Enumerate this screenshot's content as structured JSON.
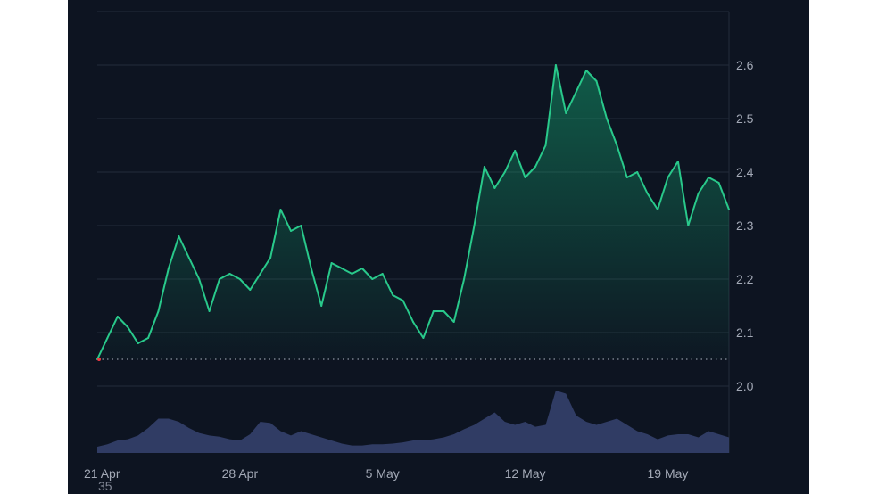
{
  "chart_data": {
    "type": "area",
    "title": "",
    "xlabel": "",
    "ylabel": "",
    "x_ticks": [
      "21 Apr",
      "28 Apr",
      "5 May",
      "12 May",
      "19 May"
    ],
    "y_ticks": [
      "2.0",
      "2.1",
      "2.2",
      "2.3",
      "2.4",
      "2.5",
      "2.6"
    ],
    "y_tick_values": [
      2.0,
      2.1,
      2.2,
      2.3,
      2.4,
      2.5,
      2.6
    ],
    "ylim": [
      1.875,
      2.7
    ],
    "xlim": [
      "2024-04-21",
      "2024-05-22"
    ],
    "grid": true,
    "y_axis_position": "right",
    "reference_line": 2.05,
    "colors": {
      "background": "#0d1421",
      "grid": "#232b3a",
      "line": "#29c98b",
      "area": "#16c784",
      "volume": "#34406b",
      "reference": "#8b93a1",
      "start_marker": "#ea3943"
    },
    "series": [
      {
        "type": "line",
        "points": [
          [
            "2024-04-21",
            2.05
          ],
          [
            "2024-04-21T12",
            2.09
          ],
          [
            "2024-04-22",
            2.13
          ],
          [
            "2024-04-22T12",
            2.11
          ],
          [
            "2024-04-23",
            2.08
          ],
          [
            "2024-04-23T12",
            2.09
          ],
          [
            "2024-04-24",
            2.14
          ],
          [
            "2024-04-24T12",
            2.22
          ],
          [
            "2024-04-25",
            2.28
          ],
          [
            "2024-04-25T12",
            2.24
          ],
          [
            "2024-04-26",
            2.2
          ],
          [
            "2024-04-26T12",
            2.14
          ],
          [
            "2024-04-27",
            2.2
          ],
          [
            "2024-04-27T12",
            2.21
          ],
          [
            "2024-04-28",
            2.2
          ],
          [
            "2024-04-28T12",
            2.18
          ],
          [
            "2024-04-29",
            2.21
          ],
          [
            "2024-04-29T12",
            2.24
          ],
          [
            "2024-04-30",
            2.33
          ],
          [
            "2024-04-30T12",
            2.29
          ],
          [
            "2024-05-01",
            2.3
          ],
          [
            "2024-05-01T12",
            2.22
          ],
          [
            "2024-05-02",
            2.15
          ],
          [
            "2024-05-02T12",
            2.23
          ],
          [
            "2024-05-03",
            2.22
          ],
          [
            "2024-05-03T12",
            2.21
          ],
          [
            "2024-05-04",
            2.22
          ],
          [
            "2024-05-04T12",
            2.2
          ],
          [
            "2024-05-05",
            2.21
          ],
          [
            "2024-05-05T12",
            2.17
          ],
          [
            "2024-05-06",
            2.16
          ],
          [
            "2024-05-06T12",
            2.12
          ],
          [
            "2024-05-07",
            2.09
          ],
          [
            "2024-05-07T12",
            2.14
          ],
          [
            "2024-05-08",
            2.14
          ],
          [
            "2024-05-08T12",
            2.12
          ],
          [
            "2024-05-09",
            2.2
          ],
          [
            "2024-05-09T12",
            2.3
          ],
          [
            "2024-05-10",
            2.41
          ],
          [
            "2024-05-10T12",
            2.37
          ],
          [
            "2024-05-11",
            2.4
          ],
          [
            "2024-05-11T12",
            2.44
          ],
          [
            "2024-05-12",
            2.39
          ],
          [
            "2024-05-12T12",
            2.41
          ],
          [
            "2024-05-13",
            2.45
          ],
          [
            "2024-05-13T12",
            2.6
          ],
          [
            "2024-05-14",
            2.51
          ],
          [
            "2024-05-14T12",
            2.55
          ],
          [
            "2024-05-15",
            2.59
          ],
          [
            "2024-05-15T12",
            2.57
          ],
          [
            "2024-05-16",
            2.5
          ],
          [
            "2024-05-16T12",
            2.45
          ],
          [
            "2024-05-17",
            2.39
          ],
          [
            "2024-05-17T12",
            2.4
          ],
          [
            "2024-05-18",
            2.36
          ],
          [
            "2024-05-18T12",
            2.33
          ],
          [
            "2024-05-19",
            2.39
          ],
          [
            "2024-05-19T12",
            2.42
          ],
          [
            "2024-05-20",
            2.3
          ],
          [
            "2024-05-20T12",
            2.36
          ],
          [
            "2024-05-21",
            2.39
          ],
          [
            "2024-05-21T12",
            2.38
          ],
          [
            "2024-05-22",
            2.33
          ]
        ]
      },
      {
        "type": "volume",
        "points": [
          [
            "2024-04-21",
            0.1
          ],
          [
            "2024-04-21T12",
            0.14
          ],
          [
            "2024-04-22",
            0.2
          ],
          [
            "2024-04-22T12",
            0.22
          ],
          [
            "2024-04-23",
            0.28
          ],
          [
            "2024-04-23T12",
            0.4
          ],
          [
            "2024-04-24",
            0.55
          ],
          [
            "2024-04-24T12",
            0.55
          ],
          [
            "2024-04-25",
            0.5
          ],
          [
            "2024-04-25T12",
            0.4
          ],
          [
            "2024-04-26",
            0.32
          ],
          [
            "2024-04-26T12",
            0.28
          ],
          [
            "2024-04-27",
            0.26
          ],
          [
            "2024-04-27T12",
            0.22
          ],
          [
            "2024-04-28",
            0.2
          ],
          [
            "2024-04-28T12",
            0.3
          ],
          [
            "2024-04-29",
            0.5
          ],
          [
            "2024-04-29T12",
            0.48
          ],
          [
            "2024-04-30",
            0.35
          ],
          [
            "2024-04-30T12",
            0.28
          ],
          [
            "2024-05-01",
            0.35
          ],
          [
            "2024-05-01T12",
            0.3
          ],
          [
            "2024-05-02",
            0.25
          ],
          [
            "2024-05-02T12",
            0.2
          ],
          [
            "2024-05-03",
            0.15
          ],
          [
            "2024-05-03T12",
            0.12
          ],
          [
            "2024-05-04",
            0.12
          ],
          [
            "2024-05-04T12",
            0.14
          ],
          [
            "2024-05-05",
            0.14
          ],
          [
            "2024-05-05T12",
            0.15
          ],
          [
            "2024-05-06",
            0.17
          ],
          [
            "2024-05-06T12",
            0.2
          ],
          [
            "2024-05-07",
            0.2
          ],
          [
            "2024-05-07T12",
            0.22
          ],
          [
            "2024-05-08",
            0.25
          ],
          [
            "2024-05-08T12",
            0.3
          ],
          [
            "2024-05-09",
            0.38
          ],
          [
            "2024-05-09T12",
            0.45
          ],
          [
            "2024-05-10",
            0.55
          ],
          [
            "2024-05-10T12",
            0.65
          ],
          [
            "2024-05-11",
            0.5
          ],
          [
            "2024-05-11T12",
            0.45
          ],
          [
            "2024-05-12",
            0.5
          ],
          [
            "2024-05-12T12",
            0.42
          ],
          [
            "2024-05-13",
            0.45
          ],
          [
            "2024-05-13T12",
            1.0
          ],
          [
            "2024-05-14",
            0.95
          ],
          [
            "2024-05-14T12",
            0.6
          ],
          [
            "2024-05-15",
            0.5
          ],
          [
            "2024-05-15T12",
            0.45
          ],
          [
            "2024-05-16",
            0.5
          ],
          [
            "2024-05-16T12",
            0.55
          ],
          [
            "2024-05-17",
            0.45
          ],
          [
            "2024-05-17T12",
            0.35
          ],
          [
            "2024-05-18",
            0.3
          ],
          [
            "2024-05-18T12",
            0.22
          ],
          [
            "2024-05-19",
            0.28
          ],
          [
            "2024-05-19T12",
            0.3
          ],
          [
            "2024-05-20",
            0.3
          ],
          [
            "2024-05-20T12",
            0.25
          ],
          [
            "2024-05-21",
            0.35
          ],
          [
            "2024-05-21T12",
            0.3
          ],
          [
            "2024-05-22",
            0.25
          ]
        ]
      }
    ]
  },
  "stray_label": "35"
}
